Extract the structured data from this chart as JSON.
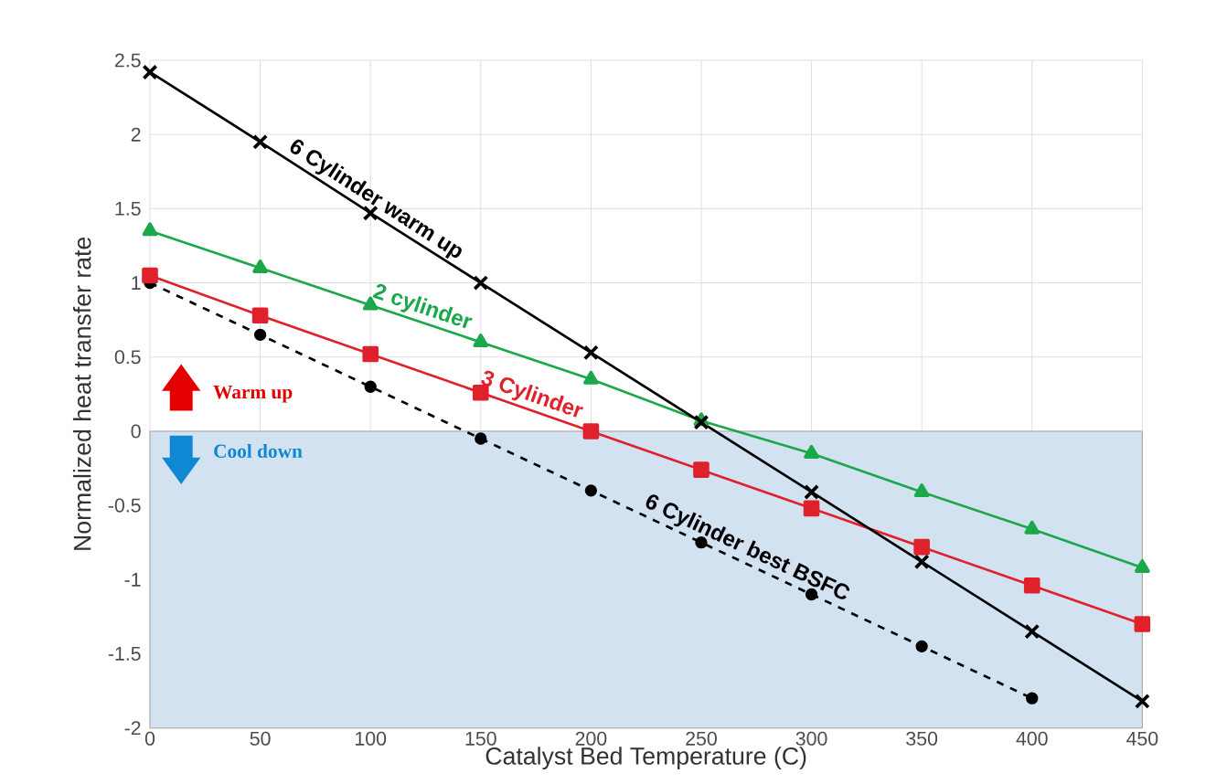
{
  "chart_data": {
    "type": "line",
    "xlabel": "Catalyst Bed Temperature (C)",
    "ylabel": "Normalized heat transfer rate",
    "x": [
      0,
      50,
      100,
      150,
      200,
      250,
      300,
      350,
      400,
      450
    ],
    "series": [
      {
        "name": "6 Cylinder warm up",
        "color": "#000000",
        "marker": "cross",
        "line_style": "solid",
        "values": [
          2.42,
          1.95,
          1.47,
          1.0,
          0.53,
          0.06,
          -0.41,
          -0.88,
          -1.35,
          -1.82
        ]
      },
      {
        "name": "2 cylinder",
        "color": "#1aa84a",
        "marker": "triangle",
        "line_style": "solid",
        "values": [
          1.35,
          1.1,
          0.85,
          0.6,
          0.35,
          0.07,
          -0.15,
          -0.41,
          -0.66,
          -0.92
        ]
      },
      {
        "name": "3 Cylinder",
        "color": "#e0202a",
        "marker": "square",
        "line_style": "solid",
        "values": [
          1.05,
          0.78,
          0.52,
          0.26,
          0.0,
          -0.26,
          -0.52,
          -0.78,
          -1.04,
          -1.3
        ]
      },
      {
        "name": "6 Cylinder best BSFC",
        "color": "#000000",
        "marker": "circle",
        "line_style": "dashed",
        "x": [
          0,
          50,
          100,
          150,
          200,
          250,
          300,
          350,
          400
        ],
        "values": [
          1.0,
          0.65,
          0.3,
          -0.05,
          -0.4,
          -0.75,
          -1.1,
          -1.45,
          -1.8
        ]
      }
    ],
    "xlim": [
      0,
      450
    ],
    "ylim": [
      -2,
      2.5
    ],
    "xticks": [
      0,
      50,
      100,
      150,
      200,
      250,
      300,
      350,
      400,
      450
    ],
    "yticks": [
      -2,
      -1.5,
      -1,
      -0.5,
      0,
      0.5,
      1,
      1.5,
      2,
      2.5
    ],
    "bands": [
      {
        "axis": "y",
        "from": -2,
        "to": 0,
        "color": "#d3e2f1"
      }
    ],
    "annotations": [
      "Warm up",
      "Cool down"
    ],
    "grid": true
  }
}
